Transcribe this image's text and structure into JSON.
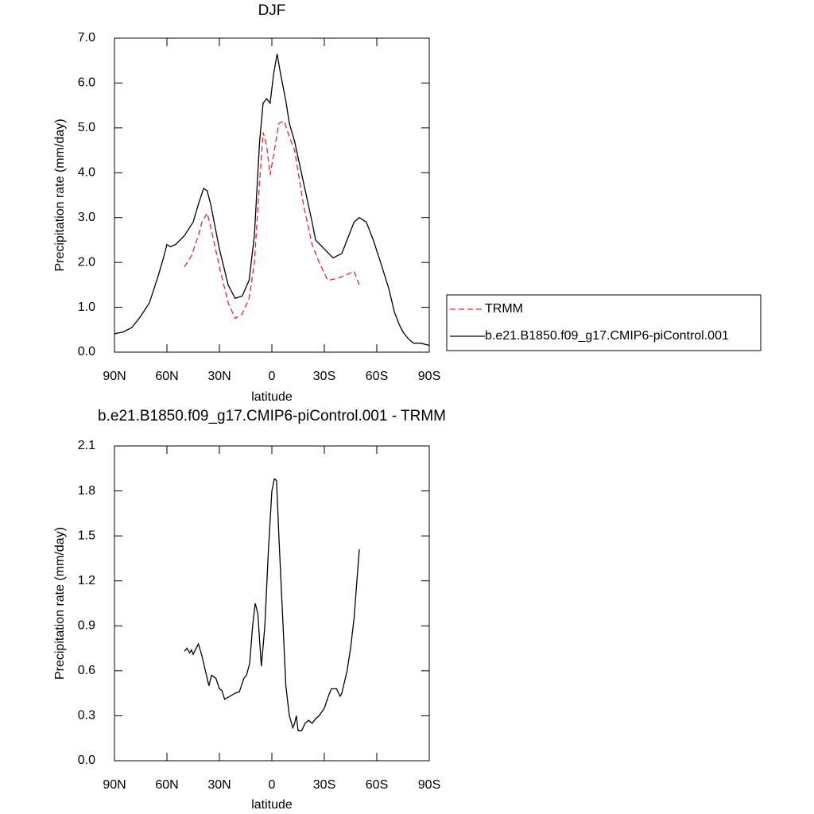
{
  "chart_data": [
    {
      "type": "line",
      "title": "DJF",
      "x_label": "latitude",
      "y_label": "Precipitation rate (mm/day)",
      "xlim": [
        90,
        -90
      ],
      "xticks": [
        {
          "value": 90,
          "label": "90N"
        },
        {
          "value": 60,
          "label": "60N"
        },
        {
          "value": 30,
          "label": "30N"
        },
        0,
        {
          "value": -30,
          "label": "30S"
        },
        {
          "value": -60,
          "label": "60S"
        },
        {
          "value": -90,
          "label": "90S"
        }
      ],
      "ylim": [
        0,
        7
      ],
      "yticks": [
        {
          "value": 0,
          "label": "0.0"
        },
        {
          "value": 1,
          "label": "1.0"
        },
        {
          "value": 2,
          "label": "2.0"
        },
        {
          "value": 3,
          "label": "3.0"
        },
        {
          "value": 4,
          "label": "4.0"
        },
        {
          "value": 5,
          "label": "5.0"
        },
        {
          "value": 6,
          "label": "6.0"
        },
        {
          "value": 7,
          "label": "7.0"
        }
      ],
      "legend": "outside-right",
      "series": [
        {
          "name": "TRMM",
          "color": "#e8262c",
          "dash": true,
          "x": [
            50,
            46,
            42,
            40,
            37,
            35,
            30,
            25,
            21,
            17,
            13,
            10,
            7,
            5,
            3,
            1,
            -1,
            -4,
            -7,
            -10,
            -13,
            -18,
            -23,
            -27,
            -32,
            -38,
            -44,
            -47,
            -50
          ],
          "values": [
            1.9,
            2.15,
            2.6,
            2.9,
            3.1,
            2.8,
            1.9,
            1.1,
            0.75,
            0.85,
            1.2,
            2.0,
            3.8,
            4.9,
            4.6,
            3.95,
            4.4,
            5.1,
            5.15,
            4.8,
            4.5,
            3.3,
            2.4,
            2.0,
            1.6,
            1.65,
            1.75,
            1.8,
            1.5
          ]
        },
        {
          "name": "b.e21.B1850.f09_g17.CMIP6-piControl.001",
          "color": "#000000",
          "dash": false,
          "x": [
            90,
            85,
            80,
            75,
            70,
            65,
            62,
            60,
            58,
            55,
            50,
            45,
            42,
            39,
            37,
            35,
            30,
            25,
            21,
            17,
            13,
            10,
            7,
            5,
            3,
            1,
            -1,
            -3,
            -5,
            -8,
            -10,
            -13,
            -18,
            -23,
            -25,
            -30,
            -35,
            -40,
            -43,
            -47,
            -50,
            -54,
            -58,
            -63,
            -67,
            -70,
            -73,
            -75,
            -78,
            -81,
            -85,
            -90
          ],
          "values": [
            0.41,
            0.45,
            0.55,
            0.8,
            1.1,
            1.7,
            2.1,
            2.4,
            2.35,
            2.4,
            2.6,
            2.9,
            3.3,
            3.65,
            3.6,
            3.3,
            2.3,
            1.5,
            1.2,
            1.25,
            1.6,
            2.6,
            4.7,
            5.55,
            5.65,
            5.55,
            6.2,
            6.65,
            6.2,
            5.6,
            5.1,
            4.7,
            3.8,
            2.9,
            2.5,
            2.3,
            2.1,
            2.2,
            2.5,
            2.9,
            3.0,
            2.9,
            2.5,
            1.9,
            1.4,
            0.9,
            0.6,
            0.45,
            0.3,
            0.2,
            0.2,
            0.15
          ]
        }
      ]
    },
    {
      "type": "line",
      "title": "b.e21.B1850.f09_g17.CMIP6-piControl.001 - TRMM",
      "x_label": "latitude",
      "y_label": "Precipitation rate (mm/day)",
      "xlim": [
        90,
        -90
      ],
      "xticks": [
        {
          "value": 90,
          "label": "90N"
        },
        {
          "value": 60,
          "label": "60N"
        },
        {
          "value": 30,
          "label": "30N"
        },
        0,
        {
          "value": -30,
          "label": "30S"
        },
        {
          "value": -60,
          "label": "60S"
        },
        {
          "value": -90,
          "label": "90S"
        }
      ],
      "ylim": [
        0,
        2.1
      ],
      "yticks": [
        {
          "value": 0,
          "label": "0.0"
        },
        0.3,
        0.6,
        0.9,
        1.2,
        1.5,
        1.8,
        2.1
      ],
      "series": [
        {
          "color": "#000000",
          "dash": false,
          "x": [
            50,
            48.6,
            47,
            46,
            45,
            42,
            40,
            38,
            36,
            34.5,
            32,
            30,
            28.6,
            27,
            24,
            21,
            18.6,
            16,
            14.5,
            12.7,
            11,
            9.5,
            8,
            7,
            6,
            4,
            2,
            0,
            -1.4,
            -2.7,
            -4,
            -6,
            -8,
            -10,
            -12,
            -13,
            -14,
            -15,
            -17,
            -19,
            -21,
            -23,
            -25,
            -27,
            -30,
            -32,
            -34,
            -37,
            -39,
            -40,
            -43,
            -45,
            -47,
            -50
          ],
          "values": [
            0.73,
            0.75,
            0.72,
            0.74,
            0.71,
            0.78,
            0.7,
            0.6,
            0.5,
            0.57,
            0.55,
            0.48,
            0.47,
            0.41,
            0.43,
            0.45,
            0.46,
            0.55,
            0.57,
            0.65,
            0.9,
            1.05,
            0.98,
            0.8,
            0.63,
            0.9,
            1.4,
            1.8,
            1.88,
            1.87,
            1.5,
            1.0,
            0.5,
            0.3,
            0.22,
            0.25,
            0.3,
            0.2,
            0.2,
            0.25,
            0.27,
            0.25,
            0.28,
            0.3,
            0.35,
            0.42,
            0.48,
            0.48,
            0.43,
            0.45,
            0.6,
            0.75,
            0.95,
            1.41
          ]
        }
      ]
    }
  ]
}
